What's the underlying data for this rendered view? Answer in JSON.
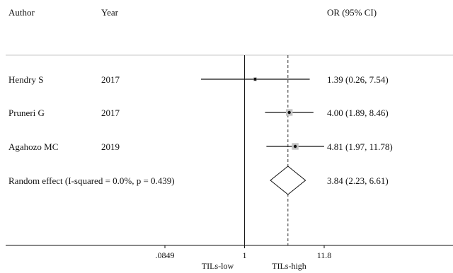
{
  "header": {
    "author": "Author",
    "year": "Year",
    "or_ci": "OR (95% CI)"
  },
  "chart_data": {
    "type": "forest",
    "scale": "log",
    "xlim": [
      0.0849,
      11.8
    ],
    "x_ticks": [
      {
        "value": 0.0849,
        "label": ".0849"
      },
      {
        "value": 1,
        "label": "1"
      },
      {
        "value": 11.8,
        "label": "11.8"
      }
    ],
    "null_value": 1,
    "pooled_reference": 3.84,
    "favors_left": "TILs-low",
    "favors_right": "TILs-high",
    "studies": [
      {
        "author": "Hendry S",
        "year": "2017",
        "or": 1.39,
        "lo": 0.26,
        "hi": 7.54,
        "or_text": "1.39 (0.26, 7.54)",
        "weight": 0.1
      },
      {
        "author": "Pruneri G",
        "year": "2017",
        "or": 4.0,
        "lo": 1.89,
        "hi": 8.46,
        "or_text": "4.00 (1.89, 8.46)",
        "weight": 0.45
      },
      {
        "author": "Agahozo MC",
        "year": "2019",
        "or": 4.81,
        "lo": 1.97,
        "hi": 11.78,
        "or_text": "4.81 (1.97, 11.78)",
        "weight": 0.45
      }
    ],
    "pooled": {
      "label": "Random effect (I-squared = 0.0%, p = 0.439)",
      "or": 3.84,
      "lo": 2.23,
      "hi": 6.61,
      "or_text": "3.84 (2.23, 6.61)"
    }
  }
}
